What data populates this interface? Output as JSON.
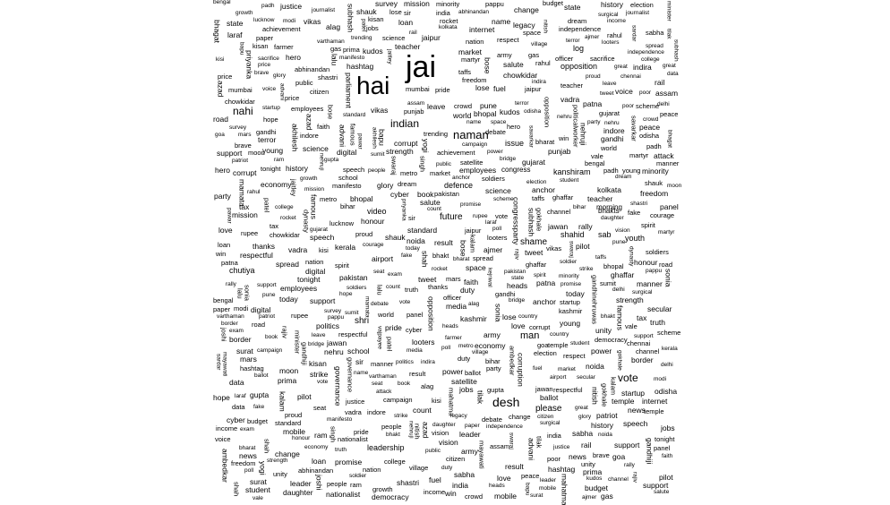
{
  "word_cloud": {
    "words_horizontal": [
      "jai",
      "hai",
      "desh",
      "naman",
      "indian",
      "nahi",
      "vote",
      "man",
      "please",
      "future",
      "shame",
      "shri",
      "defence",
      "issue",
      "opposition",
      "video",
      "leadership",
      "kanshiram",
      "chutiya",
      "shahid",
      "log",
      "youth",
      "sab",
      "bhakts",
      "congress",
      "morning",
      "nehru",
      "name",
      "kudos",
      "leave",
      "sumit",
      "employees",
      "manner",
      "padh",
      "bharat",
      "standard",
      "shauk",
      "respectful",
      "varthaman",
      "daughter",
      "kisi",
      "ghaffar",
      "looters",
      "heads",
      "taffs",
      "vale",
      "laraf",
      "alag",
      "spread",
      "prima",
      "gandhi",
      "minority",
      "gupta",
      "rahul",
      "pappu",
      "achievement",
      "tonight",
      "proud",
      "fake",
      "salute",
      "rally",
      "modi",
      "army",
      "pilot",
      "india",
      "nation",
      "media",
      "brave",
      "soldiers",
      "politics",
      "election",
      "power",
      "world",
      "today",
      "hope",
      "love",
      "respect",
      "sir",
      "hero",
      "shastri",
      "indira",
      "abhinandan",
      "freedom",
      "independence",
      "strike",
      "pakistan",
      "terror",
      "kashmir",
      "temple",
      "peace",
      "sacrifice",
      "history",
      "support",
      "thanks",
      "great",
      "sabha",
      "leader",
      "vikas",
      "vadra",
      "corrupt",
      "poor",
      "people",
      "country",
      "party",
      "chowkidar",
      "ram",
      "bhakt",
      "patriot",
      "dream",
      "democracy",
      "vision",
      "change",
      "truth",
      "justice",
      "honour",
      "courage",
      "duty",
      "legacy",
      "martyr",
      "spirit",
      "pride",
      "glory",
      "unity",
      "strength",
      "faith",
      "nationalist",
      "secular",
      "public",
      "voice",
      "young",
      "citizen",
      "attack",
      "border",
      "surgical",
      "mission",
      "officer",
      "soldier",
      "jawan",
      "kisan",
      "village",
      "crowd",
      "speech",
      "journalist",
      "tweet",
      "hashtag",
      "trending",
      "support",
      "vote",
      "ballot",
      "result",
      "campaign",
      "manifesto",
      "promise",
      "budget",
      "economy",
      "growth",
      "jobs",
      "startup",
      "farmer",
      "loan",
      "scheme",
      "tax",
      "income",
      "rupee",
      "market",
      "price",
      "fuel",
      "gas",
      "rail",
      "road",
      "metro",
      "bridge",
      "airport",
      "school",
      "college",
      "student",
      "teacher",
      "exam",
      "book",
      "science",
      "space",
      "rocket",
      "moon",
      "mars",
      "satellite",
      "digital",
      "internet",
      "mobile",
      "data",
      "cyber",
      "news",
      "paper",
      "channel",
      "debate",
      "panel",
      "anchor",
      "poll",
      "survey",
      "count",
      "win",
      "lose",
      "seat",
      "state",
      "delhi",
      "mumbai",
      "bengal",
      "kerala",
      "punjab",
      "bihar",
      "assam",
      "odisha",
      "goa",
      "gujarat",
      "ajmer",
      "lucknow",
      "kolkata",
      "chennai",
      "patna",
      "jaipur",
      "bhopal",
      "indore",
      "surat",
      "pune",
      "noida"
    ],
    "words_vertical": [
      "politicalworker",
      "gandhinehruwas",
      "dynasty",
      "famous",
      "congressparty",
      "minister",
      "governance",
      "corruption",
      "parliament",
      "opposition",
      "rajiv",
      "sonia",
      "priyanka",
      "gandhiji",
      "mahatma",
      "bapu",
      "nehruji",
      "sardar",
      "patel",
      "bose",
      "subhash",
      "bhagat",
      "singh",
      "azad",
      "tilak",
      "gokhale",
      "savarkar",
      "ambedkar",
      "kalam",
      "vajpayee",
      "advani",
      "joshi",
      "jaitley",
      "swaraj",
      "pawar",
      "mamata",
      "mayawati",
      "akhilesh",
      "lalu",
      "nitish",
      "kejriwal",
      "yogi",
      "shah"
    ],
    "text_color": "#000000",
    "background_color": "#ffffff"
  }
}
